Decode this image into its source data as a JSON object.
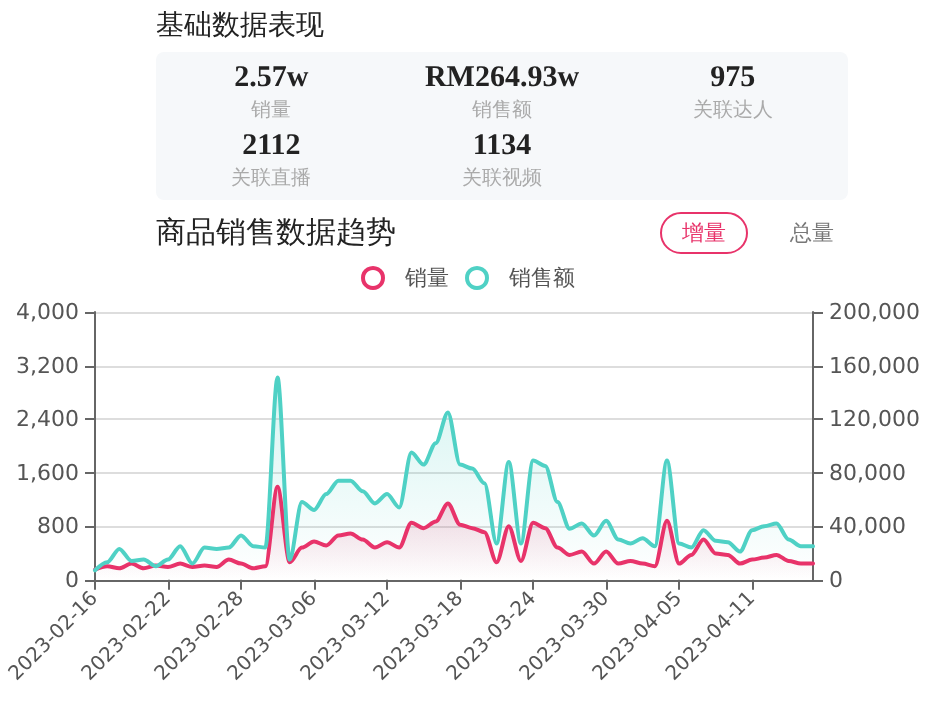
{
  "chart_data": [
    {
      "type": "other",
      "title": "基础数据表现",
      "annotations": [
        "2.57w",
        "销量",
        "RM264.93w",
        "销售额",
        "975",
        "关联达人",
        "2112",
        "关联直播",
        "1134",
        "关联视频"
      ]
    },
    {
      "type": "line",
      "title": "商品销售数据趋势",
      "annotations": [
        "增量",
        "总量"
      ],
      "xlim": [
        "2023-02-16",
        "2023-04-16"
      ],
      "xticks": [
        "2023-02-16",
        "2023-02-22",
        "2023-02-28",
        "2023-03-06",
        "2023-03-12",
        "2023-03-18",
        "2023-03-24",
        "2023-03-30",
        "2023-04-05",
        "2023-04-11"
      ],
      "x": [
        "2023-02-16",
        "2023-02-17",
        "2023-02-18",
        "2023-02-19",
        "2023-02-20",
        "2023-02-21",
        "2023-02-22",
        "2023-02-23",
        "2023-02-24",
        "2023-02-25",
        "2023-02-26",
        "2023-02-27",
        "2023-02-28",
        "2023-03-01",
        "2023-03-02",
        "2023-03-03",
        "2023-03-04",
        "2023-03-05",
        "2023-03-06",
        "2023-03-07",
        "2023-03-08",
        "2023-03-09",
        "2023-03-10",
        "2023-03-11",
        "2023-03-12",
        "2023-03-13",
        "2023-03-14",
        "2023-03-15",
        "2023-03-16",
        "2023-03-17",
        "2023-03-18",
        "2023-03-19",
        "2023-03-20",
        "2023-03-21",
        "2023-03-22",
        "2023-03-23",
        "2023-03-24",
        "2023-03-25",
        "2023-03-26",
        "2023-03-27",
        "2023-03-28",
        "2023-03-29",
        "2023-03-30",
        "2023-03-31",
        "2023-04-01",
        "2023-04-02",
        "2023-04-03",
        "2023-04-04",
        "2023-04-05",
        "2023-04-06",
        "2023-04-07",
        "2023-04-08",
        "2023-04-09",
        "2023-04-10",
        "2023-04-11",
        "2023-04-12",
        "2023-04-13",
        "2023-04-14",
        "2023-04-15",
        "2023-04-16"
      ],
      "series": [
        {
          "name": "销量",
          "type": "area",
          "color": "#e8336a",
          "values": [
            150,
            200,
            170,
            240,
            170,
            210,
            190,
            240,
            190,
            210,
            190,
            300,
            240,
            170,
            200,
            1390,
            260,
            480,
            570,
            510,
            660,
            690,
            600,
            480,
            560,
            480,
            850,
            770,
            870,
            1140,
            820,
            770,
            710,
            260,
            800,
            280,
            850,
            770,
            480,
            370,
            420,
            240,
            420,
            240,
            280,
            240,
            200,
            880,
            240,
            370,
            600,
            390,
            370,
            240,
            300,
            330,
            370,
            280,
            240,
            240
          ]
        },
        {
          "name": "销售额",
          "type": "area",
          "axis": "y2",
          "color": "#4fd1c5",
          "values": [
            7000,
            13000,
            23000,
            14000,
            15000,
            10000,
            15000,
            25000,
            12000,
            24000,
            23000,
            24000,
            33000,
            25000,
            24000,
            151000,
            15000,
            58000,
            52000,
            64000,
            74000,
            74000,
            66000,
            57000,
            64000,
            54000,
            95000,
            86000,
            102000,
            125000,
            86000,
            83000,
            72000,
            27000,
            88000,
            27000,
            89000,
            85000,
            58000,
            38000,
            42000,
            33000,
            44000,
            30000,
            27000,
            31000,
            25000,
            89000,
            27000,
            24000,
            37000,
            29000,
            28000,
            21000,
            37000,
            40000,
            42000,
            30000,
            25000,
            25000
          ]
        }
      ],
      "ylim": [
        0,
        4000
      ],
      "yticks": [
        0,
        {
          "value": 800,
          "label": "800"
        },
        {
          "value": 1600,
          "label": "1,600"
        },
        {
          "value": 2400,
          "label": "2,400"
        },
        {
          "value": 3200,
          "label": "3,200"
        },
        {
          "value": 4000,
          "label": "4,000"
        }
      ],
      "y2lim": [
        0,
        200000
      ],
      "y2ticks": [
        0,
        {
          "value": 40000,
          "label": "40,000"
        },
        {
          "value": 80000,
          "label": "80,000"
        },
        {
          "value": 120000,
          "label": "120,000"
        },
        {
          "value": 160000,
          "label": "160,000"
        },
        {
          "value": 200000,
          "label": "200,000"
        }
      ],
      "grid": "y",
      "legend": "top",
      "marker": "none",
      "line_style": "solid"
    }
  ]
}
